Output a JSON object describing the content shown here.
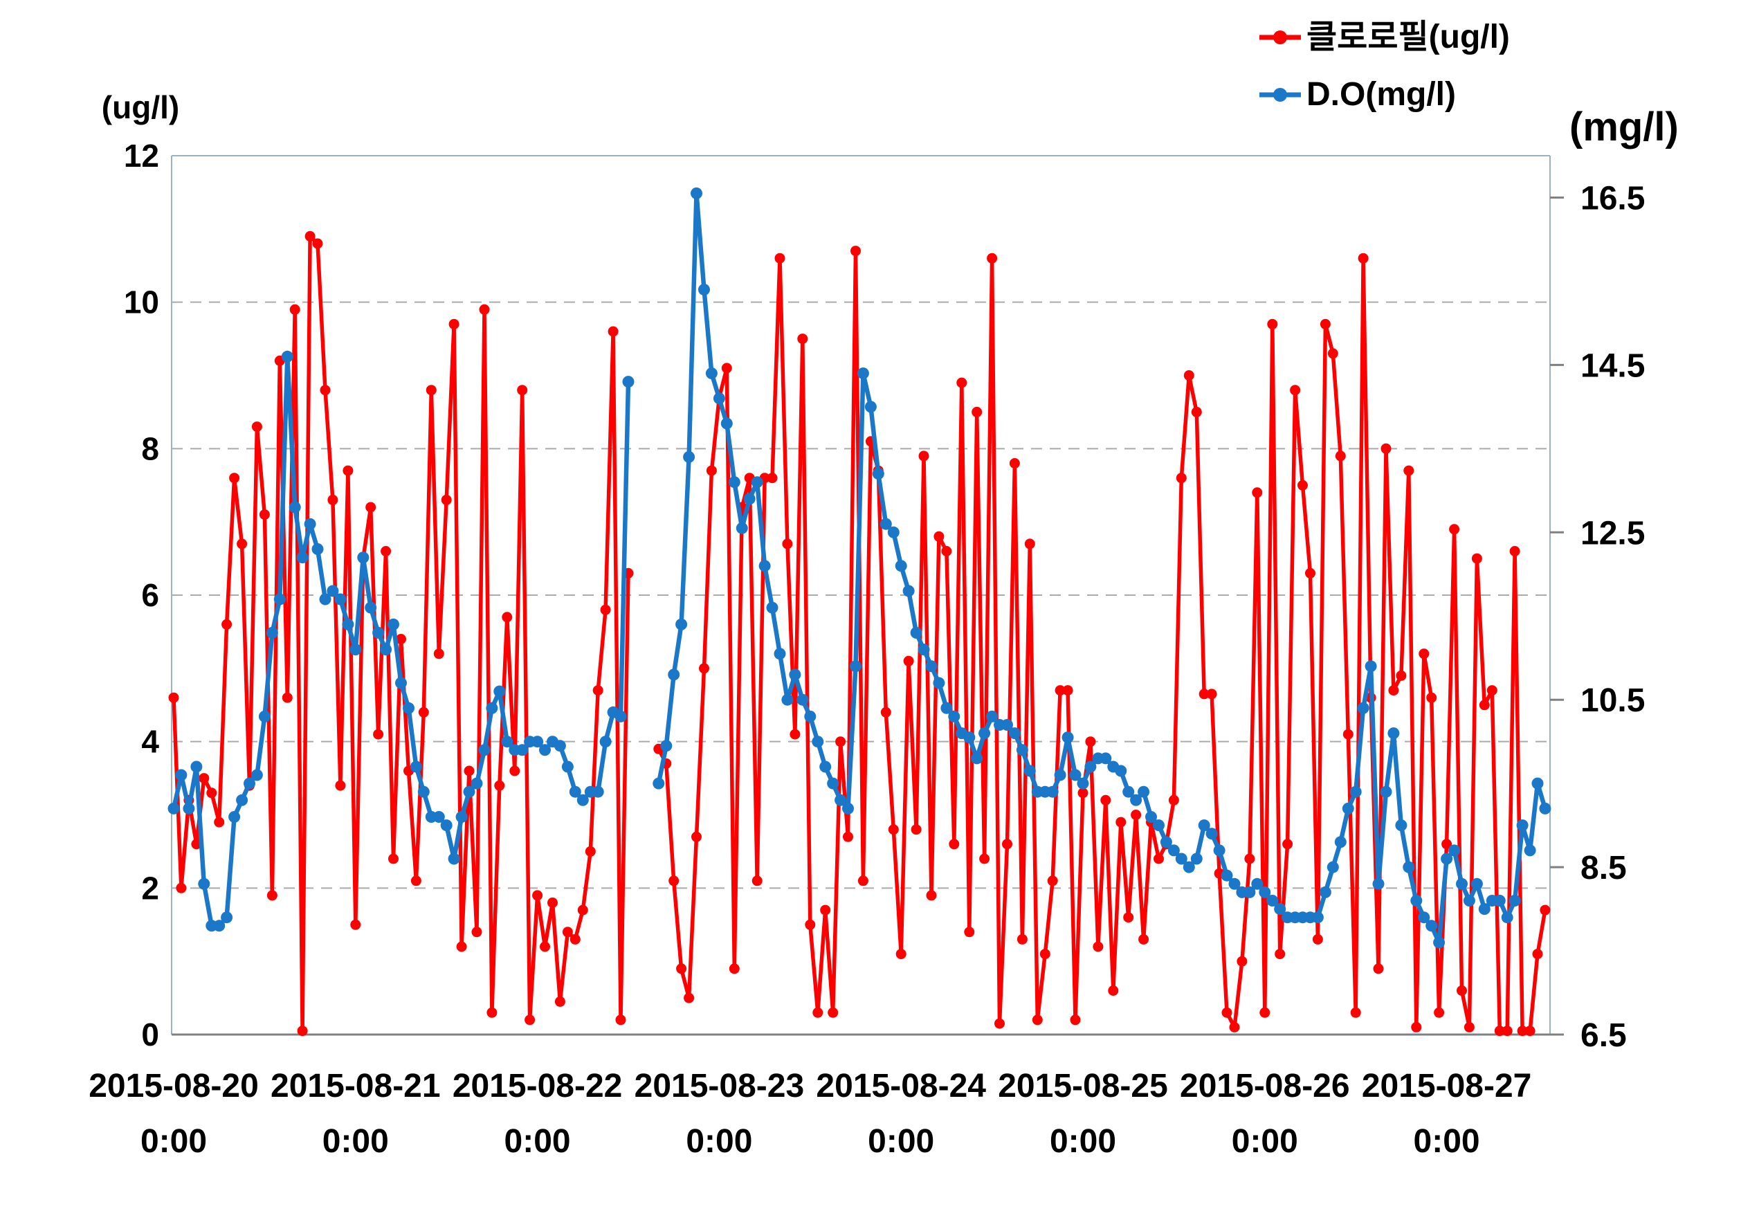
{
  "chart_data": {
    "type": "line",
    "title": "",
    "start_datetime": "2015-08-20 0:00",
    "interval_hours": 1,
    "grid": "horizontal-dashed",
    "legend_position": "top-right",
    "left_axis": {
      "label": "(ug/l)",
      "min": 0,
      "max": 12,
      "ticks": [
        0,
        2,
        4,
        6,
        8,
        10,
        12
      ]
    },
    "right_axis": {
      "label": "(mg/l)",
      "min": 6.5,
      "max": 17.0,
      "ticks": [
        6.5,
        8.5,
        10.5,
        12.5,
        14.5,
        16.5
      ]
    },
    "x_ticks": [
      {
        "date": "2015-08-20",
        "time": "0:00"
      },
      {
        "date": "2015-08-21",
        "time": "0:00"
      },
      {
        "date": "2015-08-22",
        "time": "0:00"
      },
      {
        "date": "2015-08-23",
        "time": "0:00"
      },
      {
        "date": "2015-08-24",
        "time": "0:00"
      },
      {
        "date": "2015-08-25",
        "time": "0:00"
      },
      {
        "date": "2015-08-26",
        "time": "0:00"
      },
      {
        "date": "2015-08-27",
        "time": "0:00"
      }
    ],
    "series": [
      {
        "name": "클로로필(ug/l)",
        "axis": "left",
        "color": "#ff0000",
        "values": [
          4.6,
          2.0,
          3.2,
          2.6,
          3.5,
          3.3,
          2.9,
          5.6,
          7.6,
          6.7,
          3.4,
          8.3,
          7.1,
          1.9,
          9.2,
          4.6,
          9.9,
          0.05,
          10.9,
          10.8,
          8.8,
          7.3,
          3.4,
          7.7,
          1.5,
          6.5,
          7.2,
          4.1,
          6.6,
          2.4,
          5.4,
          3.6,
          2.1,
          4.4,
          8.8,
          5.2,
          7.3,
          9.7,
          1.2,
          3.6,
          1.4,
          9.9,
          0.3,
          3.4,
          5.7,
          3.6,
          8.8,
          0.2,
          1.9,
          1.2,
          1.8,
          0.45,
          1.4,
          1.3,
          1.7,
          2.5,
          4.7,
          5.8,
          9.6,
          0.2,
          6.3,
          null,
          null,
          null,
          3.9,
          3.7,
          2.1,
          0.9,
          0.5,
          2.7,
          5.0,
          7.7,
          8.7,
          9.1,
          0.9,
          7.2,
          7.6,
          2.1,
          7.6,
          7.6,
          10.6,
          6.7,
          4.1,
          9.5,
          1.5,
          0.3,
          1.7,
          0.3,
          4.0,
          2.7,
          10.7,
          2.1,
          8.1,
          7.7,
          4.4,
          2.8,
          1.1,
          5.1,
          2.8,
          7.9,
          1.9,
          6.8,
          6.6,
          2.6,
          8.9,
          1.4,
          8.5,
          2.4,
          10.6,
          0.15,
          2.6,
          7.8,
          1.3,
          6.7,
          0.2,
          1.1,
          2.1,
          4.7,
          4.7,
          0.2,
          3.3,
          4.0,
          1.2,
          3.2,
          0.6,
          2.9,
          1.6,
          3.0,
          1.3,
          2.9,
          2.4,
          2.6,
          3.2,
          7.6,
          9.0,
          8.5,
          4.65,
          4.65,
          2.2,
          0.3,
          0.1,
          1.0,
          2.4,
          7.4,
          0.3,
          9.7,
          1.1,
          2.6,
          8.8,
          7.5,
          6.3,
          1.3,
          9.7,
          9.3,
          7.9,
          4.1,
          0.3,
          10.6,
          4.6,
          0.9,
          8.0,
          4.7,
          4.9,
          7.7,
          0.1,
          5.2,
          4.6,
          0.3,
          2.6,
          6.9,
          0.6,
          0.1,
          6.5,
          4.5,
          4.7,
          0.05,
          0.05,
          6.6,
          0.05,
          0.05,
          1.1,
          1.7
        ]
      },
      {
        "name": "D.O(mg/l)",
        "axis": "right",
        "color": "#1b78c9",
        "values": [
          9.2,
          9.6,
          9.2,
          9.7,
          8.3,
          7.8,
          7.8,
          7.9,
          9.1,
          9.3,
          9.5,
          9.6,
          10.3,
          11.3,
          11.7,
          14.6,
          12.8,
          12.2,
          12.6,
          12.3,
          11.7,
          11.8,
          11.7,
          11.4,
          11.1,
          12.2,
          11.6,
          11.3,
          11.1,
          11.4,
          10.7,
          10.4,
          9.7,
          9.4,
          9.1,
          9.1,
          9.0,
          8.6,
          9.1,
          9.4,
          9.5,
          9.9,
          10.4,
          10.6,
          10.0,
          9.9,
          9.9,
          10.0,
          10.0,
          9.9,
          10.0,
          9.95,
          9.7,
          9.4,
          9.3,
          9.4,
          9.4,
          10.0,
          10.35,
          10.3,
          14.3,
          null,
          null,
          null,
          9.5,
          9.95,
          10.8,
          11.4,
          13.4,
          16.55,
          15.4,
          14.4,
          14.1,
          13.8,
          13.1,
          12.55,
          12.9,
          13.1,
          12.1,
          11.6,
          11.05,
          10.5,
          10.8,
          10.5,
          10.3,
          10.0,
          9.7,
          9.5,
          9.3,
          9.2,
          10.9,
          14.4,
          14.0,
          13.2,
          12.6,
          12.5,
          12.1,
          11.8,
          11.3,
          11.1,
          10.9,
          10.7,
          10.4,
          10.3,
          10.1,
          10.05,
          9.8,
          10.1,
          10.3,
          10.2,
          10.2,
          10.1,
          9.9,
          9.65,
          9.4,
          9.4,
          9.4,
          9.6,
          10.05,
          9.6,
          9.5,
          9.7,
          9.8,
          9.8,
          9.7,
          9.65,
          9.4,
          9.3,
          9.4,
          9.1,
          9.0,
          8.8,
          8.7,
          8.6,
          8.5,
          8.6,
          9.0,
          8.9,
          8.7,
          8.4,
          8.3,
          8.2,
          8.2,
          8.3,
          8.2,
          8.1,
          8.0,
          7.9,
          7.9,
          7.9,
          7.9,
          7.9,
          8.2,
          8.5,
          8.8,
          9.2,
          9.4,
          10.4,
          10.9,
          8.3,
          9.4,
          10.1,
          9.0,
          8.5,
          8.1,
          7.9,
          7.8,
          7.6,
          8.6,
          8.7,
          8.3,
          8.1,
          8.3,
          8.0,
          8.1,
          8.1,
          7.9,
          8.1,
          9.0,
          8.7,
          9.5,
          9.2
        ]
      }
    ],
    "style": {
      "background": "#ffffff",
      "gridline_color": "#aaaaaa",
      "axis_line_color": "#808080",
      "border_color": "#9bb0c4",
      "tick_label_color": "#000000"
    }
  }
}
